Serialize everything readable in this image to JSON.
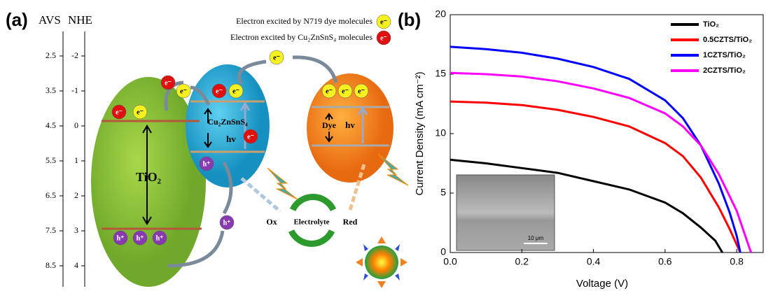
{
  "panel_a": {
    "label": "(a)",
    "avs_title": "AVS",
    "nhe_title": "NHE",
    "avs_ticks": [
      2.5,
      3.5,
      4.5,
      5.5,
      6.5,
      7.5,
      8.5
    ],
    "nhe_ticks": [
      -2,
      -1,
      0,
      1,
      2,
      3,
      4
    ],
    "legend": [
      "Electron excited by N719 dye molecules",
      "Electron excited by Cu₂ZnSnS₄ molecules"
    ],
    "tio2_label": "TiO₂",
    "czts_label": "Cu₂ZnSnS₄",
    "dye_label": "Dye",
    "hv_label": "hv",
    "electron_label": "e⁻",
    "hole_label": "h⁺",
    "ox_label": "Ox",
    "electrolyte_label": "Electrolyte",
    "red_label": "Red"
  },
  "chart_data": {
    "type": "line",
    "panel_label": "(b)",
    "x_label": "Voltage (V)",
    "y_label": "Current Density (mA cm⁻²)",
    "xlim": [
      0,
      0.874
    ],
    "ylim": [
      0,
      20
    ],
    "xticks": [
      {
        "value": 0,
        "label": "0.0"
      },
      {
        "value": 0.2,
        "label": "0.2"
      },
      {
        "value": 0.4,
        "label": "0.4"
      },
      {
        "value": 0.6,
        "label": "0.6"
      },
      {
        "value": 0.8,
        "label": "0.8"
      }
    ],
    "yticks": [
      0,
      5,
      10,
      15,
      20
    ],
    "inset_scale": "10 μm",
    "legend_position": "upper right",
    "series": [
      {
        "name": "TiO₂",
        "color": "#000000",
        "x": [
          0,
          0.1,
          0.2,
          0.3,
          0.4,
          0.5,
          0.6,
          0.65,
          0.7,
          0.74,
          0.76
        ],
        "values": [
          7.8,
          7.5,
          7.1,
          6.7,
          6.0,
          5.3,
          4.2,
          3.3,
          2.1,
          1.0,
          0
        ]
      },
      {
        "name": "0.5CZTS/TiO₂",
        "color": "#ff0000",
        "x": [
          0,
          0.1,
          0.2,
          0.3,
          0.4,
          0.5,
          0.6,
          0.65,
          0.7,
          0.75,
          0.78,
          0.81
        ],
        "values": [
          12.7,
          12.6,
          12.4,
          12.0,
          11.4,
          10.6,
          9.2,
          8.1,
          6.3,
          3.8,
          2.0,
          0
        ]
      },
      {
        "name": "1CZTS/TiO₂",
        "color": "#0000ff",
        "x": [
          0,
          0.1,
          0.2,
          0.3,
          0.4,
          0.5,
          0.6,
          0.65,
          0.7,
          0.75,
          0.78,
          0.8,
          0.81
        ],
        "values": [
          17.3,
          17.1,
          16.8,
          16.3,
          15.6,
          14.6,
          12.8,
          11.3,
          9.0,
          5.8,
          3.4,
          1.4,
          0
        ]
      },
      {
        "name": "2CZTS/TiO₂",
        "color": "#ff00ff",
        "x": [
          0,
          0.1,
          0.2,
          0.3,
          0.4,
          0.5,
          0.6,
          0.65,
          0.7,
          0.75,
          0.8,
          0.84
        ],
        "values": [
          15.1,
          15.0,
          14.8,
          14.4,
          13.8,
          13.0,
          11.7,
          10.6,
          9.0,
          6.6,
          3.5,
          0
        ]
      }
    ]
  }
}
